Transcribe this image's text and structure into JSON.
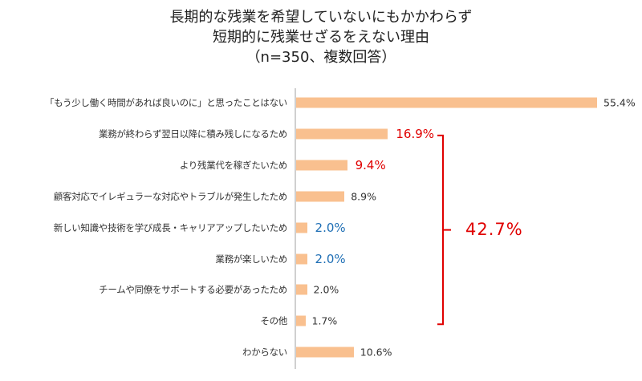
{
  "chart_data": {
    "type": "bar",
    "orientation": "horizontal",
    "title_lines": [
      "長期的な残業を希望していないにもかかわらず",
      "短期的に残業せざるをえない理由",
      "（n=350、複数回答）"
    ],
    "categories": [
      "「もう少し働く時間があれば良いのに」と思ったことはない",
      "業務が終わらず翌日以降に積み残しになるため",
      "より残業代を稼ぎたいため",
      "顧客対応でイレギュラーな対応やトラブルが発生したため",
      "新しい知識や技術を学び成長・キャリアアップしたいため",
      "業務が楽しいため",
      "チームや同僚をサポートする必要があったため",
      "その他",
      "わからない"
    ],
    "values": [
      55.4,
      16.9,
      9.4,
      8.9,
      2.0,
      2.0,
      2.0,
      1.7,
      10.6
    ],
    "value_labels": [
      "55.4%",
      "16.9%",
      "9.4%",
      "8.9%",
      "2.0%",
      "2.0%",
      "2.0%",
      "1.7%",
      "10.6%"
    ],
    "label_styles": [
      "normal",
      "red",
      "red",
      "normal",
      "blue",
      "blue",
      "normal",
      "normal",
      "normal"
    ],
    "bracket": {
      "from_index": 1,
      "to_index": 7,
      "label": "42.7%"
    },
    "xlim": [
      0,
      55.4
    ],
    "unit": "%",
    "grid": false,
    "legend": "none",
    "colors": {
      "bar": "#f9c08f",
      "normal": "#333333",
      "red": "#e00000",
      "blue": "#1f6fb5",
      "axis": "#d0d0d0"
    }
  }
}
